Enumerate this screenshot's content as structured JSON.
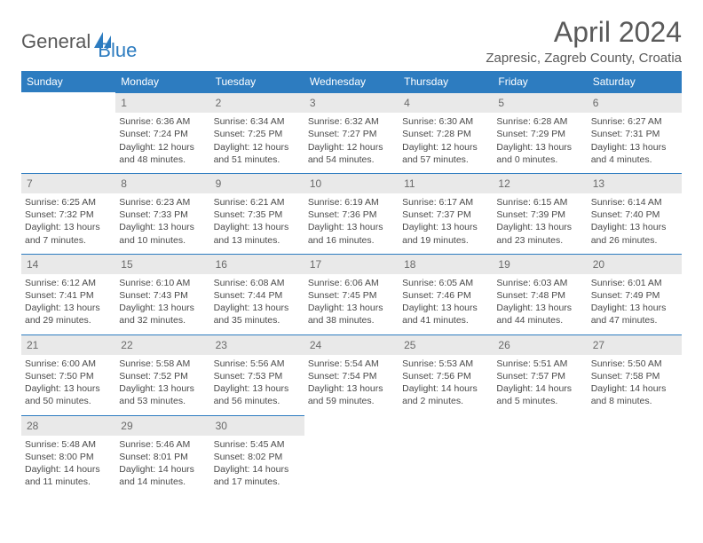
{
  "logo": {
    "part1": "General",
    "part2": "Blue"
  },
  "title": "April 2024",
  "location": "Zapresic, Zagreb County, Croatia",
  "colors": {
    "header_bg": "#2d7cc0",
    "header_text": "#ffffff",
    "daynum_bg": "#e9e9e9",
    "daynum_text": "#6a6a6a",
    "cell_text": "#4a4a4a",
    "title_text": "#5a5a5a",
    "row_divider": "#2d7cc0"
  },
  "weekdays": [
    "Sunday",
    "Monday",
    "Tuesday",
    "Wednesday",
    "Thursday",
    "Friday",
    "Saturday"
  ],
  "weeks": [
    [
      null,
      {
        "n": "1",
        "sunrise": "6:36 AM",
        "sunset": "7:24 PM",
        "day_a": "Daylight: 12 hours",
        "day_b": "and 48 minutes."
      },
      {
        "n": "2",
        "sunrise": "6:34 AM",
        "sunset": "7:25 PM",
        "day_a": "Daylight: 12 hours",
        "day_b": "and 51 minutes."
      },
      {
        "n": "3",
        "sunrise": "6:32 AM",
        "sunset": "7:27 PM",
        "day_a": "Daylight: 12 hours",
        "day_b": "and 54 minutes."
      },
      {
        "n": "4",
        "sunrise": "6:30 AM",
        "sunset": "7:28 PM",
        "day_a": "Daylight: 12 hours",
        "day_b": "and 57 minutes."
      },
      {
        "n": "5",
        "sunrise": "6:28 AM",
        "sunset": "7:29 PM",
        "day_a": "Daylight: 13 hours",
        "day_b": "and 0 minutes."
      },
      {
        "n": "6",
        "sunrise": "6:27 AM",
        "sunset": "7:31 PM",
        "day_a": "Daylight: 13 hours",
        "day_b": "and 4 minutes."
      }
    ],
    [
      {
        "n": "7",
        "sunrise": "6:25 AM",
        "sunset": "7:32 PM",
        "day_a": "Daylight: 13 hours",
        "day_b": "and 7 minutes."
      },
      {
        "n": "8",
        "sunrise": "6:23 AM",
        "sunset": "7:33 PM",
        "day_a": "Daylight: 13 hours",
        "day_b": "and 10 minutes."
      },
      {
        "n": "9",
        "sunrise": "6:21 AM",
        "sunset": "7:35 PM",
        "day_a": "Daylight: 13 hours",
        "day_b": "and 13 minutes."
      },
      {
        "n": "10",
        "sunrise": "6:19 AM",
        "sunset": "7:36 PM",
        "day_a": "Daylight: 13 hours",
        "day_b": "and 16 minutes."
      },
      {
        "n": "11",
        "sunrise": "6:17 AM",
        "sunset": "7:37 PM",
        "day_a": "Daylight: 13 hours",
        "day_b": "and 19 minutes."
      },
      {
        "n": "12",
        "sunrise": "6:15 AM",
        "sunset": "7:39 PM",
        "day_a": "Daylight: 13 hours",
        "day_b": "and 23 minutes."
      },
      {
        "n": "13",
        "sunrise": "6:14 AM",
        "sunset": "7:40 PM",
        "day_a": "Daylight: 13 hours",
        "day_b": "and 26 minutes."
      }
    ],
    [
      {
        "n": "14",
        "sunrise": "6:12 AM",
        "sunset": "7:41 PM",
        "day_a": "Daylight: 13 hours",
        "day_b": "and 29 minutes."
      },
      {
        "n": "15",
        "sunrise": "6:10 AM",
        "sunset": "7:43 PM",
        "day_a": "Daylight: 13 hours",
        "day_b": "and 32 minutes."
      },
      {
        "n": "16",
        "sunrise": "6:08 AM",
        "sunset": "7:44 PM",
        "day_a": "Daylight: 13 hours",
        "day_b": "and 35 minutes."
      },
      {
        "n": "17",
        "sunrise": "6:06 AM",
        "sunset": "7:45 PM",
        "day_a": "Daylight: 13 hours",
        "day_b": "and 38 minutes."
      },
      {
        "n": "18",
        "sunrise": "6:05 AM",
        "sunset": "7:46 PM",
        "day_a": "Daylight: 13 hours",
        "day_b": "and 41 minutes."
      },
      {
        "n": "19",
        "sunrise": "6:03 AM",
        "sunset": "7:48 PM",
        "day_a": "Daylight: 13 hours",
        "day_b": "and 44 minutes."
      },
      {
        "n": "20",
        "sunrise": "6:01 AM",
        "sunset": "7:49 PM",
        "day_a": "Daylight: 13 hours",
        "day_b": "and 47 minutes."
      }
    ],
    [
      {
        "n": "21",
        "sunrise": "6:00 AM",
        "sunset": "7:50 PM",
        "day_a": "Daylight: 13 hours",
        "day_b": "and 50 minutes."
      },
      {
        "n": "22",
        "sunrise": "5:58 AM",
        "sunset": "7:52 PM",
        "day_a": "Daylight: 13 hours",
        "day_b": "and 53 minutes."
      },
      {
        "n": "23",
        "sunrise": "5:56 AM",
        "sunset": "7:53 PM",
        "day_a": "Daylight: 13 hours",
        "day_b": "and 56 minutes."
      },
      {
        "n": "24",
        "sunrise": "5:54 AM",
        "sunset": "7:54 PM",
        "day_a": "Daylight: 13 hours",
        "day_b": "and 59 minutes."
      },
      {
        "n": "25",
        "sunrise": "5:53 AM",
        "sunset": "7:56 PM",
        "day_a": "Daylight: 14 hours",
        "day_b": "and 2 minutes."
      },
      {
        "n": "26",
        "sunrise": "5:51 AM",
        "sunset": "7:57 PM",
        "day_a": "Daylight: 14 hours",
        "day_b": "and 5 minutes."
      },
      {
        "n": "27",
        "sunrise": "5:50 AM",
        "sunset": "7:58 PM",
        "day_a": "Daylight: 14 hours",
        "day_b": "and 8 minutes."
      }
    ],
    [
      {
        "n": "28",
        "sunrise": "5:48 AM",
        "sunset": "8:00 PM",
        "day_a": "Daylight: 14 hours",
        "day_b": "and 11 minutes."
      },
      {
        "n": "29",
        "sunrise": "5:46 AM",
        "sunset": "8:01 PM",
        "day_a": "Daylight: 14 hours",
        "day_b": "and 14 minutes."
      },
      {
        "n": "30",
        "sunrise": "5:45 AM",
        "sunset": "8:02 PM",
        "day_a": "Daylight: 14 hours",
        "day_b": "and 17 minutes."
      },
      null,
      null,
      null,
      null
    ]
  ],
  "labels": {
    "sunrise": "Sunrise: ",
    "sunset": "Sunset: "
  }
}
